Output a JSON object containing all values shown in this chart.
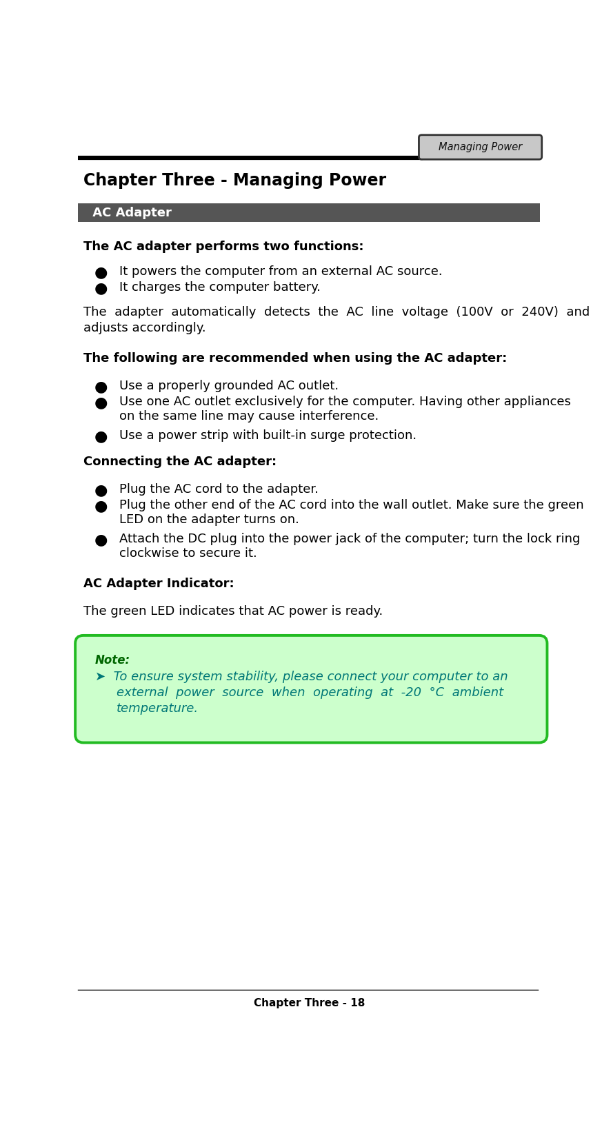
{
  "page_width": 8.73,
  "page_height": 16.38,
  "dpi": 100,
  "bg_color": "#ffffff",
  "header_tab_text": "Managing Power",
  "header_tab_bg": "#c8c8c8",
  "header_tab_border": "#333333",
  "header_line_color": "#000000",
  "chapter_title": "Chapter Three - Managing Power",
  "section_header": " AC Adapter",
  "section_header_bg": "#555555",
  "section_header_text_color": "#ffffff",
  "body_text_color": "#000000",
  "footer_text": "Chapter Three - 18",
  "note_bg": "#ccffcc",
  "note_border": "#22bb22",
  "note_title": "Note:",
  "note_title_color": "#006600",
  "note_body_color": "#007777",
  "bullet_char": "●",
  "arrow_char": "➤"
}
